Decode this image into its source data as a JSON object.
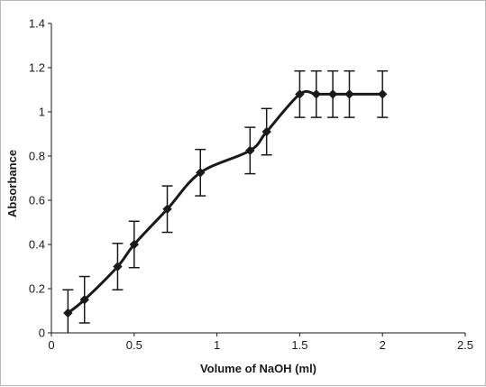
{
  "chart_data": {
    "type": "line",
    "title": "",
    "xlabel": "Volume of NaOH (ml)",
    "ylabel": "Absorbance",
    "xlim": [
      0,
      2.5
    ],
    "ylim": [
      0,
      1.4
    ],
    "xticks": [
      0,
      0.5,
      1,
      1.5,
      2,
      2.5
    ],
    "xtick_labels": [
      "0",
      "0.5",
      "1",
      "1.5",
      "2",
      "2.5"
    ],
    "yticks": [
      0,
      0.2,
      0.4,
      0.6,
      0.8,
      1,
      1.2,
      1.4
    ],
    "ytick_labels": [
      "0",
      "0.2",
      "0.4",
      "0.6",
      "0.8",
      "1",
      "1.2",
      "1.4"
    ],
    "grid": false,
    "legend": "none",
    "line_color": "#1a1a1a",
    "smooth": true,
    "series": [
      {
        "x": [
          0.1,
          0.2,
          0.4,
          0.5,
          0.7,
          0.9,
          1.2,
          1.3,
          1.5,
          1.6,
          1.7,
          1.8,
          2.0
        ],
        "y": [
          0.09,
          0.15,
          0.3,
          0.4,
          0.56,
          0.725,
          0.825,
          0.91,
          1.08,
          1.08,
          1.08,
          1.08,
          1.08
        ],
        "error": [
          0.105,
          0.105,
          0.105,
          0.105,
          0.105,
          0.105,
          0.105,
          0.105,
          0.105,
          0.105,
          0.105,
          0.105,
          0.105
        ]
      }
    ]
  }
}
